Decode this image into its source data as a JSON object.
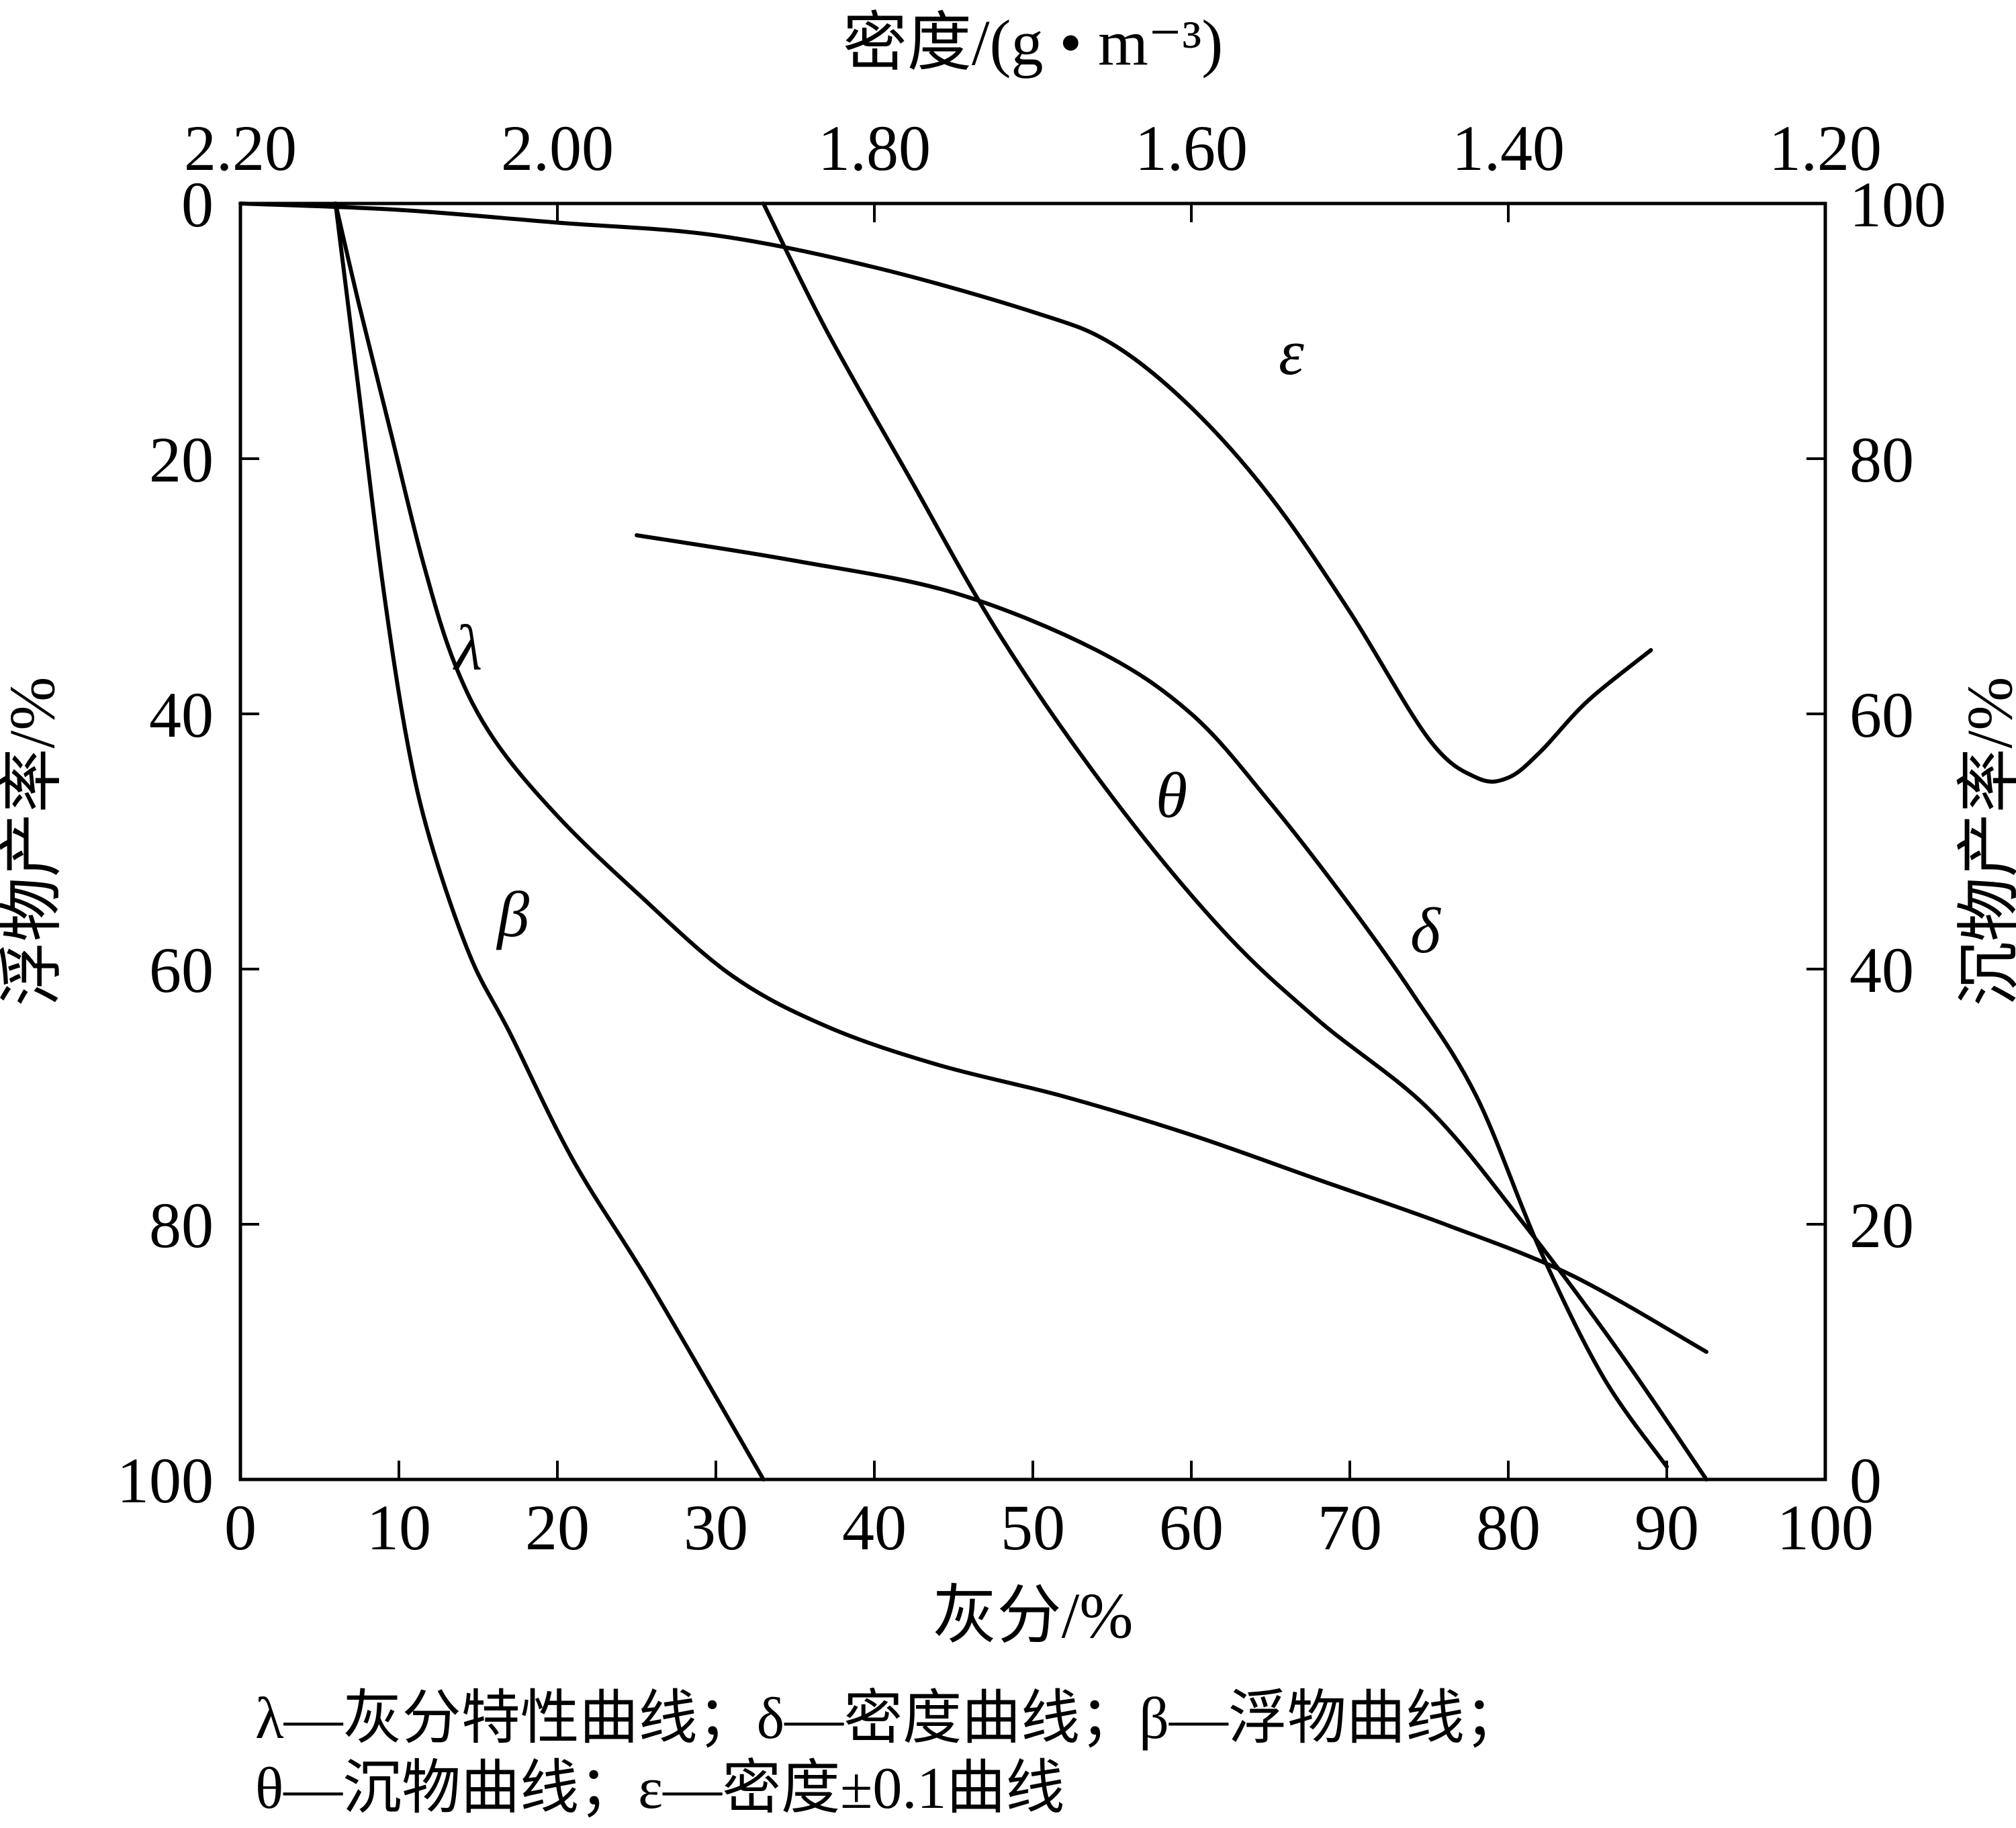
{
  "chart_data": {
    "type": "line",
    "title": "",
    "xlabel_bottom": "灰分/%",
    "xlabel_top": "密度/(g • m⁻³)",
    "ylabel_left": "浮物产率/%",
    "ylabel_right": "沉物产率/%",
    "x_bottom": {
      "range": [
        0,
        100
      ],
      "ticks": [
        "0",
        "10",
        "20",
        "30",
        "40",
        "50",
        "60",
        "70",
        "80",
        "90",
        "100"
      ]
    },
    "x_top": {
      "range": [
        2.2,
        1.2
      ],
      "ticks": [
        "2.20",
        "2.00",
        "1.80",
        "1.60",
        "1.40",
        "1.20"
      ]
    },
    "y_left": {
      "range": [
        0,
        100
      ],
      "inverted": true,
      "ticks": [
        "0",
        "20",
        "40",
        "60",
        "80",
        "100"
      ]
    },
    "y_right": {
      "range": [
        100,
        0
      ],
      "ticks": [
        "100",
        "80",
        "60",
        "40",
        "20",
        "0"
      ]
    },
    "grid": false,
    "legend_lines": [
      "λ—灰分特性曲线；δ—密度曲线；β—浮物曲线；",
      "θ—沉物曲线；ε—密度±0.1曲线"
    ],
    "series": [
      {
        "name": "λ",
        "x_axis": "灰分/%",
        "y_axis": "浮物产率/%",
        "points": [
          [
            6.0,
            0
          ],
          [
            7.5,
            8
          ],
          [
            9.5,
            18
          ],
          [
            11.5,
            28
          ],
          [
            13.5,
            36
          ],
          [
            16,
            42
          ],
          [
            20,
            48
          ],
          [
            25,
            54
          ],
          [
            31,
            60.5
          ],
          [
            37,
            64.5
          ],
          [
            44,
            67.5
          ],
          [
            52,
            70
          ],
          [
            60,
            73
          ],
          [
            68,
            76.5
          ],
          [
            76,
            80
          ],
          [
            84,
            84
          ],
          [
            92.5,
            90
          ]
        ]
      },
      {
        "name": "β",
        "x_axis": "灰分/%",
        "y_axis": "浮物产率/%",
        "points": [
          [
            6.0,
            0
          ],
          [
            7.5,
            15
          ],
          [
            9,
            30
          ],
          [
            10.5,
            42
          ],
          [
            12,
            50
          ],
          [
            14.5,
            59
          ],
          [
            17,
            65
          ],
          [
            21,
            75
          ],
          [
            26,
            85
          ],
          [
            33,
            100
          ]
        ]
      },
      {
        "name": "δ",
        "x_axis": "密度/(g • m⁻³)",
        "y_axis": "浮物产率/%",
        "points": [
          [
            1.3,
            99.0
          ],
          [
            1.34,
            92
          ],
          [
            1.38,
            82
          ],
          [
            1.42,
            70
          ],
          [
            1.46,
            62
          ],
          [
            1.5,
            55
          ],
          [
            1.55,
            47
          ],
          [
            1.6,
            40
          ],
          [
            1.66,
            35
          ],
          [
            1.75,
            30.5
          ],
          [
            1.85,
            28
          ],
          [
            1.95,
            26
          ]
        ]
      },
      {
        "name": "θ",
        "x_axis": "灰分/%",
        "y_axis": "沉物产率/%",
        "points": [
          [
            33,
            100
          ],
          [
            37,
            90
          ],
          [
            42,
            79
          ],
          [
            48,
            66
          ],
          [
            55,
            53.5
          ],
          [
            62,
            43
          ],
          [
            68,
            36
          ],
          [
            75,
            29
          ],
          [
            81,
            20
          ],
          [
            87,
            10
          ],
          [
            92.5,
            0
          ]
        ]
      },
      {
        "name": "ε",
        "x_axis": "密度/(g • m⁻³)",
        "y_axis": "浮物产率/%",
        "points": [
          [
            2.2,
            0
          ],
          [
            2.1,
            0.5
          ],
          [
            2.0,
            1.5
          ],
          [
            1.9,
            2.5
          ],
          [
            1.8,
            5
          ],
          [
            1.7,
            8.5
          ],
          [
            1.65,
            11
          ],
          [
            1.6,
            16
          ],
          [
            1.55,
            23
          ],
          [
            1.5,
            32
          ],
          [
            1.45,
            42
          ],
          [
            1.42,
            45
          ],
          [
            1.4,
            45
          ],
          [
            1.38,
            43
          ],
          [
            1.35,
            39
          ],
          [
            1.31,
            35
          ]
        ]
      }
    ],
    "curve_labels": [
      {
        "text": "λ",
        "series": "λ"
      },
      {
        "text": "β",
        "series": "β"
      },
      {
        "text": "δ",
        "series": "δ"
      },
      {
        "text": "θ",
        "series": "θ"
      },
      {
        "text": "ε",
        "series": "ε"
      }
    ]
  }
}
